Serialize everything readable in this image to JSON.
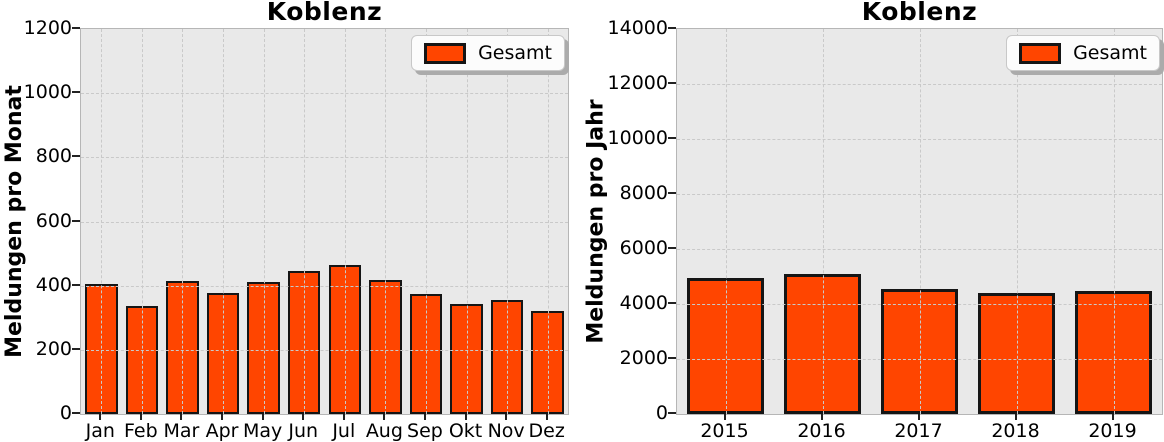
{
  "colors": {
    "bar_fill": "#FF4500",
    "bar_edge": "#151515",
    "plot_background": "#e9e9e9",
    "grid": "#c9c9c9",
    "spine": "#b6b6b6",
    "legend_background": "#fcfcfc",
    "legend_shadow": "#ababab",
    "text": "#000000"
  },
  "chart_data": [
    {
      "type": "bar",
      "title": "Koblenz",
      "ylabel": "Meldungen pro Monat",
      "xlabel": "",
      "legend": [
        "Gesamt"
      ],
      "legend_position": "upper right",
      "grid": true,
      "grid_style": "dashed",
      "categories": [
        "Jan",
        "Feb",
        "Mar",
        "Apr",
        "May",
        "Jun",
        "Jul",
        "Aug",
        "Sep",
        "Okt",
        "Nov",
        "Dez"
      ],
      "values": [
        405,
        337,
        414,
        377,
        413,
        447,
        465,
        417,
        374,
        343,
        355,
        322
      ],
      "ylim": [
        0,
        1200
      ],
      "yticks": [
        0,
        200,
        400,
        600,
        800,
        1000,
        1200
      ]
    },
    {
      "type": "bar",
      "title": "Koblenz",
      "ylabel": "Meldungen pro Jahr",
      "xlabel": "",
      "legend": [
        "Gesamt"
      ],
      "legend_position": "upper right",
      "grid": true,
      "grid_style": "dashed",
      "categories": [
        "2015",
        "2016",
        "2017",
        "2018",
        "2019"
      ],
      "values": [
        4950,
        5090,
        4530,
        4390,
        4460
      ],
      "ylim": [
        0,
        14000
      ],
      "yticks": [
        0,
        2000,
        4000,
        6000,
        8000,
        10000,
        12000,
        14000
      ]
    }
  ]
}
